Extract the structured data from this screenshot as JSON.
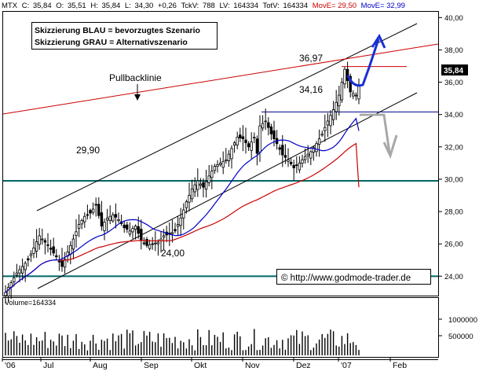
{
  "header": {
    "symbol": "MTX",
    "c_label": "C:",
    "c": "35,84",
    "o_label": "O:",
    "o": "35,51",
    "h_label": "H:",
    "h": "35,84",
    "l_label": "L:",
    "l": "34,30",
    "chg": "+0,26",
    "tickvol_label": "TckV:",
    "tickvol": "788",
    "lv_label": "LV:",
    "lv": "164334",
    "totv_label": "TotV:",
    "totv": "164334",
    "move1_label": "MovE=",
    "move1": "29,50",
    "move2_label": "MovE=",
    "move2": "32,99"
  },
  "legend_box": {
    "line1": "Skizzierung BLAU = bevorzugtes Szenario",
    "line2": "Skizzierung GRAU = Alternativszenario"
  },
  "annotations": {
    "pullback": "Pullbacklinie",
    "level_3697": "36,97",
    "level_3416": "34,16",
    "level_2990": "29,90",
    "level_2400": "24,00",
    "copyright": "© http://www.godmode-trader.de"
  },
  "volume_panel": {
    "label": "Volume=164334",
    "ticks": [
      "1000000",
      "500000"
    ]
  },
  "price_axis": {
    "ticks": [
      "40,00",
      "38,00",
      "36,00",
      "34,00",
      "32,00",
      "30,00",
      "28,00",
      "26,00",
      "24,00"
    ],
    "last_price": "35,84"
  },
  "time_axis": {
    "labels": [
      "'06",
      "Jul",
      "Aug",
      "Sep",
      "Okt",
      "Nov",
      "Dez",
      "'07",
      "Feb"
    ]
  },
  "colors": {
    "channel": "#000000",
    "ma_red": "#cc0000",
    "ma_blue": "#0000cc",
    "teal": "#006666",
    "scenario_blue": "#1a2fd6",
    "scenario_grey": "#a8a8a8",
    "candle_up": "#ffffff",
    "candle_down": "#000000"
  },
  "chart_data": {
    "type": "candlestick",
    "ylim": [
      22.8,
      40.6
    ],
    "horizontal_levels": [
      29.9,
      24.0,
      34.16
    ],
    "resistance_3697": 36.97,
    "last_close": 35.84,
    "ma_fast_last": 32.99,
    "ma_slow_last": 29.5,
    "volume_last": 164334,
    "volume_ticks": [
      1000000,
      500000
    ],
    "months": [
      "'06",
      "Jul",
      "Aug",
      "Sep",
      "Okt",
      "Nov",
      "Dez",
      "'07",
      "Feb"
    ],
    "close_path": [
      [
        0,
        23.0
      ],
      [
        4,
        24.2
      ],
      [
        8,
        25.0
      ],
      [
        12,
        26.5
      ],
      [
        15,
        25.9
      ],
      [
        18,
        25.2
      ],
      [
        20,
        24.6
      ],
      [
        22,
        25.5
      ],
      [
        24,
        26.3
      ],
      [
        26,
        27.2
      ],
      [
        28,
        27.7
      ],
      [
        30,
        27.9
      ],
      [
        32,
        28.4
      ],
      [
        34,
        27.1
      ],
      [
        36,
        27.6
      ],
      [
        38,
        27.8
      ],
      [
        40,
        27.5
      ],
      [
        42,
        27.0
      ],
      [
        44,
        26.8
      ],
      [
        46,
        27.1
      ],
      [
        48,
        26.2
      ],
      [
        50,
        25.9
      ],
      [
        52,
        26.0
      ],
      [
        54,
        26.1
      ],
      [
        56,
        26.5
      ],
      [
        58,
        26.6
      ],
      [
        60,
        26.8
      ],
      [
        62,
        27.6
      ],
      [
        64,
        28.6
      ],
      [
        66,
        29.4
      ],
      [
        68,
        29.9
      ],
      [
        70,
        29.5
      ],
      [
        72,
        30.2
      ],
      [
        74,
        30.8
      ],
      [
        76,
        31.0
      ],
      [
        78,
        31.2
      ],
      [
        80,
        31.9
      ],
      [
        82,
        32.6
      ],
      [
        84,
        32.5
      ],
      [
        86,
        32.0
      ],
      [
        88,
        32.6
      ],
      [
        89,
        31.6
      ],
      [
        90,
        33.3
      ],
      [
        92,
        33.6
      ],
      [
        94,
        32.8
      ],
      [
        96,
        32.2
      ],
      [
        98,
        31.5
      ],
      [
        100,
        31.2
      ],
      [
        102,
        30.7
      ],
      [
        104,
        31.0
      ],
      [
        106,
        31.4
      ],
      [
        108,
        31.7
      ],
      [
        110,
        32.2
      ],
      [
        112,
        32.8
      ],
      [
        114,
        33.6
      ],
      [
        116,
        34.3
      ],
      [
        118,
        35.2
      ],
      [
        120,
        36.8
      ],
      [
        122,
        35.4
      ],
      [
        124,
        35.2
      ],
      [
        125,
        35.84
      ]
    ]
  }
}
